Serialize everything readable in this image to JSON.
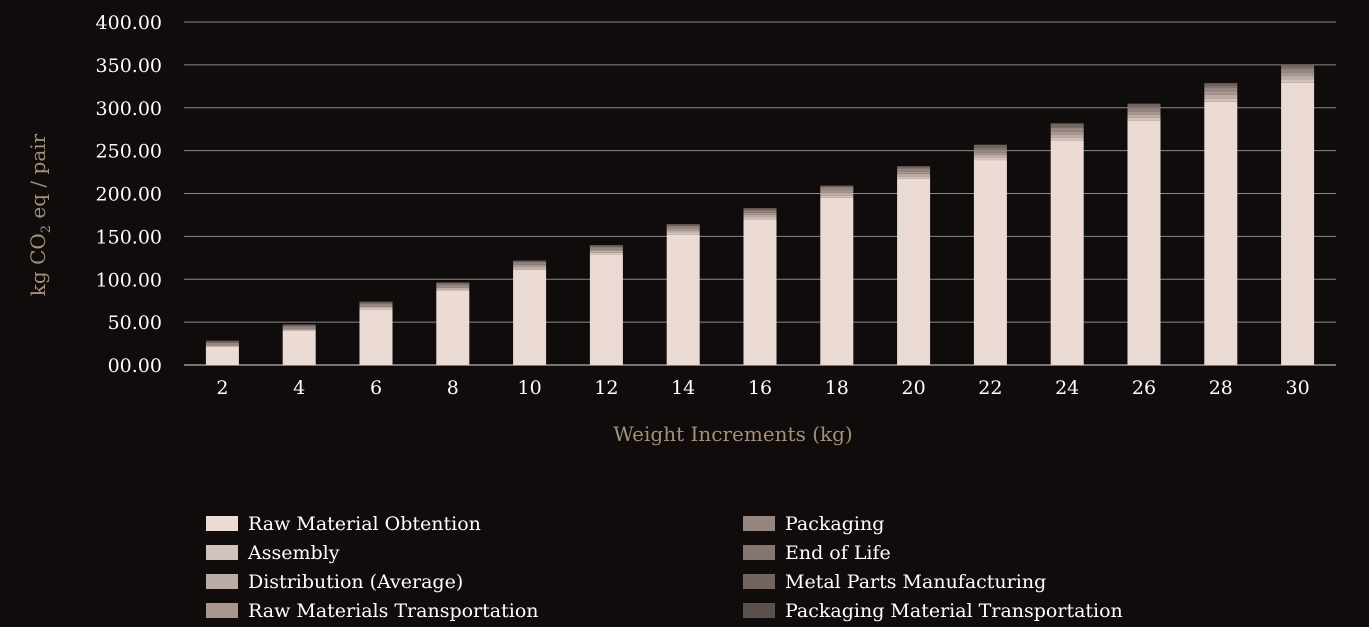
{
  "chart_data": {
    "type": "bar",
    "stacked": true,
    "categories": [
      "2",
      "4",
      "6",
      "8",
      "10",
      "12",
      "14",
      "16",
      "18",
      "20",
      "22",
      "24",
      "26",
      "28",
      "30"
    ],
    "xlabel": "Weight Increments (kg)",
    "ylabel_prefix": "kg CO",
    "ylabel_subscript": "2",
    "ylabel_suffix": " eq / pair",
    "ylim": [
      0,
      400
    ],
    "yticks": [
      "00.00",
      "50.00",
      "100.00",
      "150.00",
      "200.00",
      "250.00",
      "300.00",
      "350.00",
      "400.00"
    ],
    "grid": true,
    "legend_placement": "bottom",
    "series": [
      {
        "name": "Raw Material Obtention",
        "color": "#ecdbd5",
        "values": [
          21,
          40,
          65,
          87,
          111,
          129,
          152,
          170,
          195,
          217,
          239,
          262,
          285,
          307,
          329
        ]
      },
      {
        "name": "Assembly",
        "color": "#d3c2bb",
        "values": [
          1,
          1,
          1.5,
          1.5,
          2,
          2,
          2.5,
          2.5,
          3,
          3,
          3,
          3.5,
          3.5,
          4,
          4
        ]
      },
      {
        "name": "Distribution (Average)",
        "color": "#bdaca6",
        "values": [
          1,
          1,
          1.5,
          1.5,
          2,
          2,
          2.5,
          2.5,
          3,
          3,
          3,
          3.5,
          3.5,
          4,
          4
        ]
      },
      {
        "name": "Raw Materials Transportation",
        "color": "#a9968f",
        "values": [
          1,
          1,
          1.5,
          1.5,
          2,
          2,
          2.5,
          2.5,
          3,
          3,
          3,
          3.5,
          3.5,
          4,
          4
        ]
      },
      {
        "name": "Packaging",
        "color": "#968580",
        "values": [
          2,
          2,
          2,
          2.5,
          2.5,
          2.5,
          2.5,
          3,
          3,
          3.5,
          3.5,
          4,
          4,
          4.5,
          4.5
        ]
      },
      {
        "name": "End of Life",
        "color": "#857570",
        "values": [
          1,
          1,
          1,
          1,
          1,
          1,
          1,
          1,
          1,
          1,
          2,
          2,
          2,
          2,
          2
        ]
      },
      {
        "name": "Metal Parts Manufacturing",
        "color": "#726560",
        "values": [
          1,
          1,
          1,
          1,
          1,
          1,
          1,
          1,
          1,
          1,
          3,
          3,
          3,
          3,
          3
        ]
      },
      {
        "name": "Packaging Material Transportation",
        "color": "#5b504c",
        "values": [
          0.5,
          0.5,
          0.5,
          0.5,
          0.5,
          0.5,
          0.5,
          0.5,
          0.5,
          0.5,
          0.5,
          0.5,
          0.5,
          0.5,
          0.5
        ]
      }
    ]
  }
}
